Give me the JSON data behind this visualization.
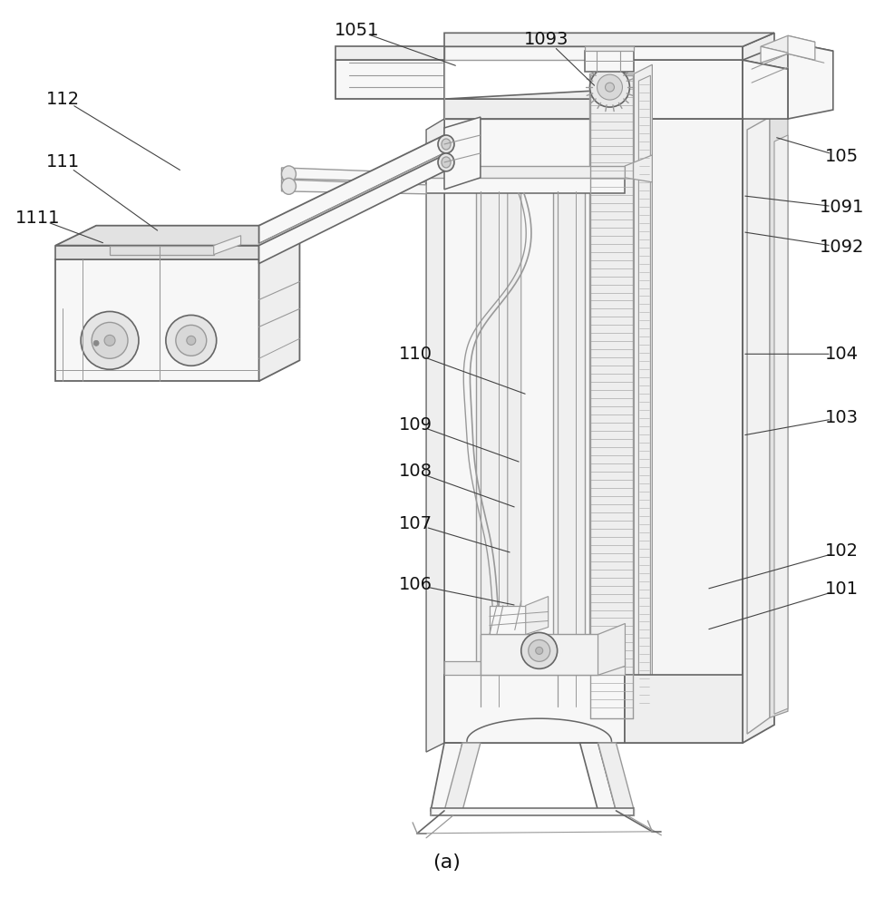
{
  "bg_color": "#ffffff",
  "lc": "#999999",
  "lc_dark": "#666666",
  "lc_thin": "#aaaaaa",
  "face_light": "#f7f7f7",
  "face_mid": "#eeeeee",
  "face_dark": "#e2e2e2",
  "face_side": "#e8e8e8",
  "label_color": "#111111",
  "title": "(a)",
  "label_fontsize": 14,
  "title_fontsize": 16,
  "labels": [
    [
      "1051",
      393,
      32,
      505,
      72
    ],
    [
      "1093",
      603,
      42,
      658,
      95
    ],
    [
      "105",
      930,
      172,
      855,
      150
    ],
    [
      "1091",
      930,
      228,
      820,
      215
    ],
    [
      "1092",
      930,
      272,
      820,
      255
    ],
    [
      "104",
      930,
      390,
      820,
      390
    ],
    [
      "103",
      930,
      460,
      820,
      480
    ],
    [
      "102",
      930,
      608,
      780,
      650
    ],
    [
      "101",
      930,
      650,
      780,
      695
    ],
    [
      "110",
      458,
      390,
      582,
      435
    ],
    [
      "109",
      458,
      468,
      575,
      510
    ],
    [
      "108",
      458,
      520,
      570,
      560
    ],
    [
      "107",
      458,
      578,
      565,
      610
    ],
    [
      "106",
      458,
      645,
      570,
      668
    ],
    [
      "112",
      68,
      108,
      200,
      188
    ],
    [
      "111",
      68,
      178,
      175,
      255
    ],
    [
      "1111",
      40,
      240,
      115,
      268
    ]
  ]
}
